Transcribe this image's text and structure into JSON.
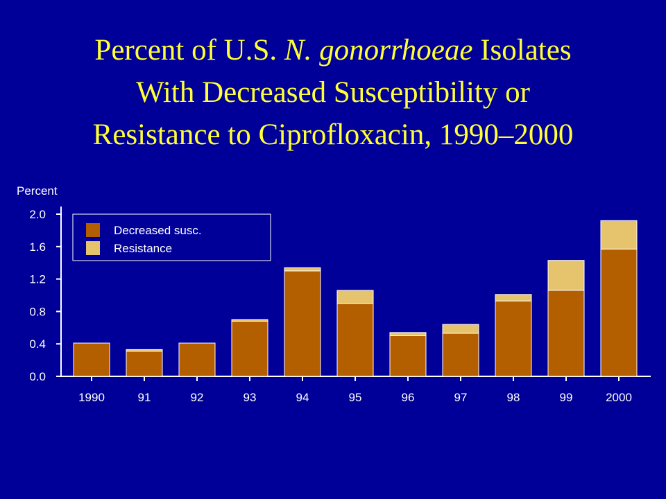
{
  "title": {
    "line1_before": "Percent of U.S. ",
    "line1_italic": "N. gonorrhoeae",
    "line1_after": " Isolates",
    "line2": "With Decreased Susceptibility or",
    "line3": "Resistance to Ciprofloxacin, 1990–2000"
  },
  "colors": {
    "background": "#000099",
    "title": "#ffff33",
    "decreased": "#b35f00",
    "resistance": "#e6c46e",
    "axis": "#ffffff"
  },
  "chart_data": {
    "type": "bar",
    "stacked": true,
    "title": "Percent of U.S. N. gonorrhoeae Isolates With Decreased Susceptibility or Resistance to Ciprofloxacin, 1990–2000",
    "xlabel": "",
    "ylabel": "Percent",
    "ylim": [
      0,
      2.0
    ],
    "yticks": [
      "0.0",
      "0.4",
      "0.8",
      "1.2",
      "1.6",
      "2.0"
    ],
    "categories": [
      "1990",
      "91",
      "92",
      "93",
      "94",
      "95",
      "96",
      "97",
      "98",
      "99",
      "2000"
    ],
    "series": [
      {
        "name": "Decreased susc.",
        "color": "#b35f00",
        "values": [
          0.41,
          0.31,
          0.41,
          0.68,
          1.3,
          0.9,
          0.5,
          0.53,
          0.93,
          1.06,
          1.57
        ]
      },
      {
        "name": "Resistance",
        "color": "#e6c46e",
        "values": [
          0.0,
          0.02,
          0.0,
          0.02,
          0.04,
          0.16,
          0.04,
          0.11,
          0.08,
          0.37,
          0.35
        ]
      }
    ],
    "legend_position": "top-left",
    "grid": false
  }
}
